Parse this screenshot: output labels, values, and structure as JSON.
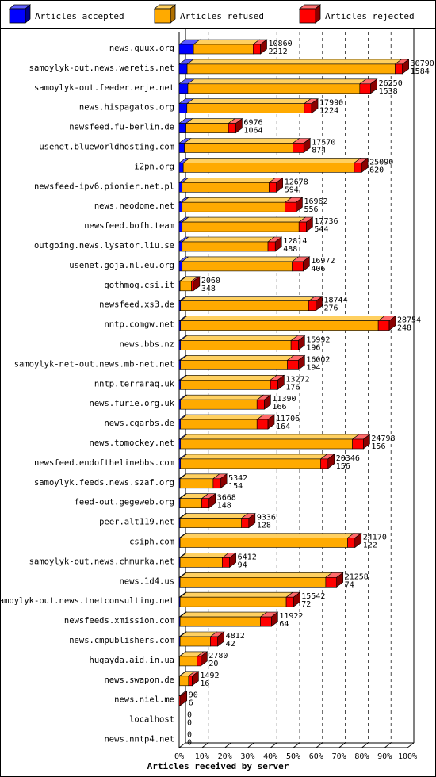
{
  "chart_data": {
    "type": "bar",
    "orientation": "horizontal",
    "stacked": true,
    "xlabel": "Articles received by server",
    "ylabel": "",
    "xlim": [
      0,
      100
    ],
    "xticks": [
      "0%",
      "10%",
      "20%",
      "30%",
      "40%",
      "50%",
      "60%",
      "70%",
      "80%",
      "90%",
      "100%"
    ],
    "legend_position": "top",
    "grid": true,
    "series": [
      {
        "name": "Articles accepted",
        "color": "#0000ff"
      },
      {
        "name": "Articles refused",
        "color": "#ffaa00"
      },
      {
        "name": "Articles rejected",
        "color": "#ff0000"
      }
    ],
    "rows": [
      {
        "server": "news.quux.org",
        "total": "10860",
        "second": "2212",
        "accepted": 6.3,
        "refused": 26.1,
        "rejected": 3.2
      },
      {
        "server": "samoylyk-out.news.weretis.net",
        "total": "30790",
        "second": "1584",
        "accepted": 3.5,
        "refused": 91.1,
        "rejected": 3.2
      },
      {
        "server": "samoylyk-out.feeder.erje.net",
        "total": "26250",
        "second": "1538",
        "accepted": 3.8,
        "refused": 75.3,
        "rejected": 4.8
      },
      {
        "server": "news.hispagatos.org",
        "total": "17990",
        "second": "1224",
        "accepted": 3.4,
        "refused": 51.4,
        "rejected": 3.2
      },
      {
        "server": "newsfeed.fu-berlin.de",
        "total": "6976",
        "second": "1064",
        "accepted": 3.0,
        "refused": 18.6,
        "rejected": 3.2
      },
      {
        "server": "usenet.blueworldhosting.com",
        "total": "17570",
        "second": "874",
        "accepted": 2.3,
        "refused": 47.5,
        "rejected": 4.8
      },
      {
        "server": "i2pn.org",
        "total": "25090",
        "second": "620",
        "accepted": 1.8,
        "refused": 74.9,
        "rejected": 3.2
      },
      {
        "server": "newsfeed-ipv6.pionier.net.pl",
        "total": "12678",
        "second": "594",
        "accepted": 1.3,
        "refused": 38.1,
        "rejected": 3.2
      },
      {
        "server": "news.neodome.net",
        "total": "16962",
        "second": "556",
        "accepted": 1.3,
        "refused": 45.1,
        "rejected": 4.8
      },
      {
        "server": "newsfeed.bofh.team",
        "total": "17736",
        "second": "544",
        "accepted": 1.3,
        "refused": 51.2,
        "rejected": 3.2
      },
      {
        "server": "outgoing.news.lysator.liu.se",
        "total": "12814",
        "second": "488",
        "accepted": 1.3,
        "refused": 37.6,
        "rejected": 3.2
      },
      {
        "server": "usenet.goja.nl.eu.org",
        "total": "16972",
        "second": "406",
        "accepted": 1.3,
        "refused": 48.2,
        "rejected": 4.8
      },
      {
        "server": "gothmog.csi.it",
        "total": "2060",
        "second": "348",
        "accepted": 0.4,
        "refused": 5.0,
        "rejected": 0.8
      },
      {
        "server": "newsfeed.xs3.de",
        "total": "18744",
        "second": "276",
        "accepted": 0.6,
        "refused": 56.1,
        "rejected": 3.2
      },
      {
        "server": "nntp.comgw.net",
        "total": "28754",
        "second": "248",
        "accepted": 0.6,
        "refused": 86.6,
        "rejected": 4.8
      },
      {
        "server": "news.bbs.nz",
        "total": "15992",
        "second": "196",
        "accepted": 0.6,
        "refused": 48.4,
        "rejected": 3.2
      },
      {
        "server": "samoylyk-net-out.news.mb-net.net",
        "total": "16002",
        "second": "194",
        "accepted": 0.6,
        "refused": 46.8,
        "rejected": 4.8
      },
      {
        "server": "nntp.terraraq.uk",
        "total": "13272",
        "second": "176",
        "accepted": 0.6,
        "refused": 39.4,
        "rejected": 3.2
      },
      {
        "server": "news.furie.org.uk",
        "total": "11390",
        "second": "166",
        "accepted": 0.6,
        "refused": 33.5,
        "rejected": 3.2
      },
      {
        "server": "news.cgarbs.de",
        "total": "11706",
        "second": "164",
        "accepted": 0.6,
        "refused": 33.5,
        "rejected": 4.8
      },
      {
        "server": "news.tomockey.net",
        "total": "24798",
        "second": "156",
        "accepted": 0.6,
        "refused": 75.3,
        "rejected": 4.8
      },
      {
        "server": "newsfeed.endofthelinebbs.com",
        "total": "20346",
        "second": "156",
        "accepted": 0.6,
        "refused": 61.4,
        "rejected": 3.2
      },
      {
        "server": "samoylyk.feeds.news.szaf.org",
        "total": "5342",
        "second": "154",
        "accepted": 0.4,
        "refused": 14.5,
        "rejected": 3.2
      },
      {
        "server": "feed-out.gegeweb.org",
        "total": "3668",
        "second": "148",
        "accepted": 0.4,
        "refused": 9.5,
        "rejected": 3.2
      },
      {
        "server": "peer.alt119.net",
        "total": "9336",
        "second": "128",
        "accepted": 0.4,
        "refused": 26.9,
        "rejected": 3.2
      },
      {
        "server": "csiph.com",
        "total": "24170",
        "second": "122",
        "accepted": 0.4,
        "refused": 73.4,
        "rejected": 3.2
      },
      {
        "server": "samoylyk-out.news.chmurka.net",
        "total": "6412",
        "second": "94",
        "accepted": 0.4,
        "refused": 18.5,
        "rejected": 3.2
      },
      {
        "server": "news.1d4.us",
        "total": "21258",
        "second": "74",
        "accepted": 0.4,
        "refused": 63.8,
        "rejected": 4.8
      },
      {
        "server": "samoylyk-out.news.tnetconsulting.net",
        "total": "15542",
        "second": "72",
        "accepted": 0.4,
        "refused": 46.5,
        "rejected": 3.2
      },
      {
        "server": "newsfeeds.xmission.com",
        "total": "11922",
        "second": "64",
        "accepted": 0.4,
        "refused": 35.2,
        "rejected": 4.8
      },
      {
        "server": "news.cmpublishers.com",
        "total": "4812",
        "second": "42",
        "accepted": 0.4,
        "refused": 13.3,
        "rejected": 3.2
      },
      {
        "server": "hugayda.aid.in.ua",
        "total": "2780",
        "second": "20",
        "accepted": 0.2,
        "refused": 7.7,
        "rejected": 1.6
      },
      {
        "server": "news.swapon.de",
        "total": "1492",
        "second": "16",
        "accepted": 0.2,
        "refused": 3.9,
        "rejected": 1.6
      },
      {
        "server": "news.niel.me",
        "total": "90",
        "second": "6",
        "accepted": 0.0,
        "refused": 0.0,
        "rejected": 0.6
      },
      {
        "server": "localhost",
        "total": "0",
        "second": "0",
        "accepted": 0.0,
        "refused": 0.0,
        "rejected": 0.0
      },
      {
        "server": "news.nntp4.net",
        "total": "0",
        "second": "0",
        "accepted": 0.0,
        "refused": 0.0,
        "rejected": 0.0
      }
    ]
  }
}
